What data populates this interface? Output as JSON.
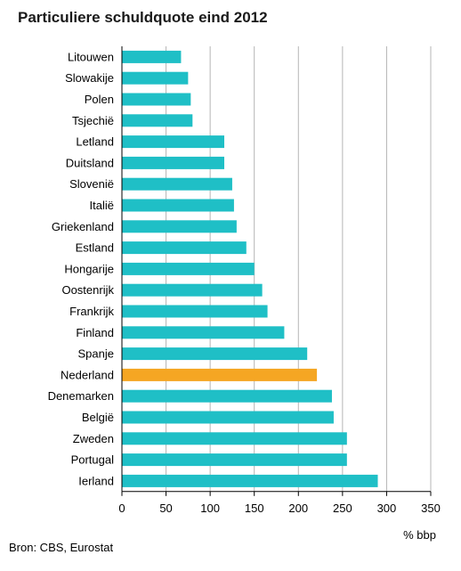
{
  "chart_data": {
    "type": "bar",
    "orientation": "horizontal",
    "title": "Particuliere schuldquote eind 2012",
    "xlabel": "% bbp",
    "ylabel": "",
    "xlim": [
      0,
      350
    ],
    "xticks": [
      0,
      50,
      100,
      150,
      200,
      250,
      300,
      350
    ],
    "grid": true,
    "source": "Bron: CBS, Eurostat",
    "categories": [
      "Litouwen",
      "Slowakije",
      "Polen",
      "Tsjechië",
      "Letland",
      "Duitsland",
      "Slovenië",
      "Italië",
      "Griekenland",
      "Estland",
      "Hongarije",
      "Oostenrijk",
      "Frankrijk",
      "Finland",
      "Spanje",
      "Nederland",
      "Denemarken",
      "België",
      "Zweden",
      "Portugal",
      "Ierland"
    ],
    "values": [
      67,
      75,
      78,
      80,
      116,
      116,
      125,
      127,
      130,
      141,
      150,
      159,
      165,
      184,
      210,
      221,
      238,
      240,
      255,
      255,
      290
    ],
    "highlight": "Nederland",
    "colors": {
      "bar": "#1fbfc6",
      "highlight": "#f5a623",
      "grid": "#b5b5b5",
      "axis": "#000000"
    }
  }
}
